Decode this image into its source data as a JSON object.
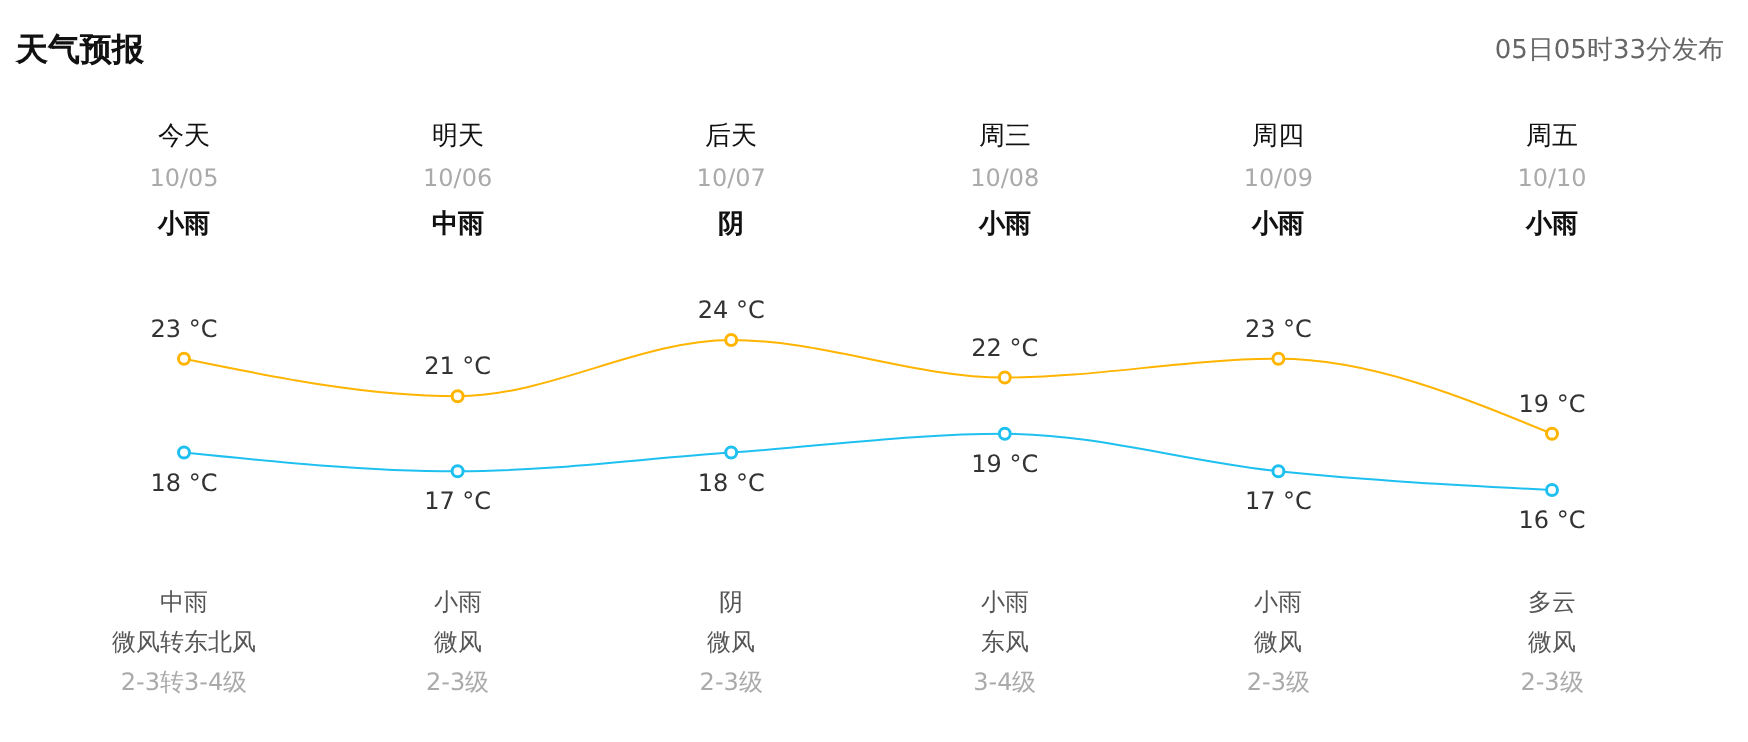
{
  "chart_data": {
    "type": "line",
    "title": "天气预报",
    "categories": [
      "今天",
      "明天",
      "后天",
      "周三",
      "周四",
      "周五"
    ],
    "series": [
      {
        "color": "#ffb400",
        "values": [
          23,
          21,
          24,
          22,
          23,
          19
        ],
        "value_labels": [
          "23 °C",
          "21 °C",
          "24 °C",
          "22 °C",
          "23 °C",
          "19 °C"
        ]
      },
      {
        "color": "#1ec0f0",
        "values": [
          18,
          17,
          18,
          19,
          17,
          16
        ],
        "value_labels": [
          "18 °C",
          "17 °C",
          "18 °C",
          "19 °C",
          "17 °C",
          "16 °C"
        ]
      }
    ],
    "marker": "circle",
    "annotations": [
      "05日05时33分发布",
      "10/05",
      "小雨",
      "中雨",
      "微风转东北风",
      "2-3转3-4级",
      "10/06",
      "中雨",
      "小雨",
      "微风",
      "2-3级",
      "10/07",
      "阴",
      "阴",
      "微风",
      "2-3级",
      "10/08",
      "小雨",
      "小雨",
      "东风",
      "3-4级",
      "10/09",
      "小雨",
      "小雨",
      "微风",
      "2-3级",
      "10/10",
      "小雨",
      "多云",
      "微风",
      "2-3级"
    ]
  }
}
